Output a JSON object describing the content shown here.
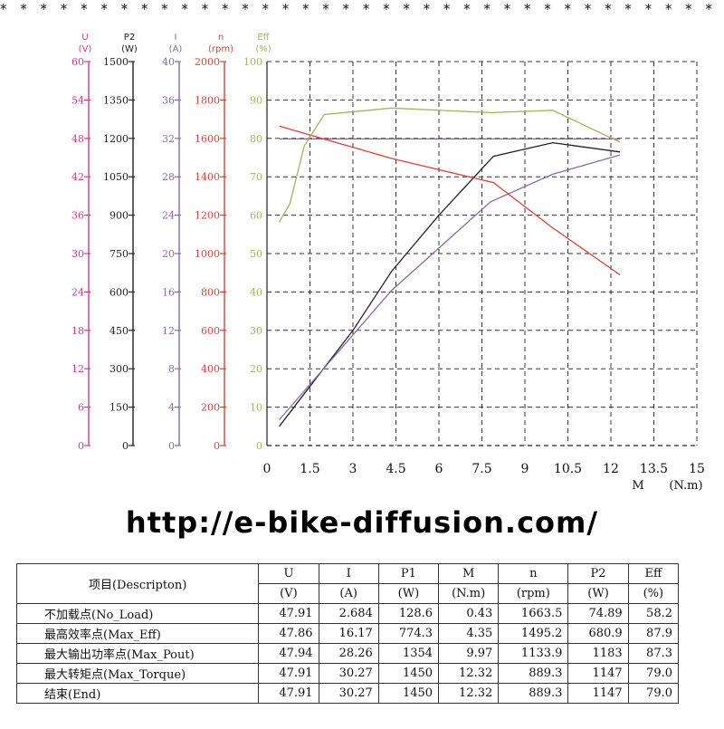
{
  "header": {
    "stars": "* * * * * * * * * * * * * * * * * * * * * * * * * * * * * * * * * * * * * * * * * * * *"
  },
  "url": "http://e-bike-diffusion.com/",
  "chart_data": {
    "type": "line",
    "xlabel": "M",
    "xunit": "(N.m)",
    "x_ticks": [
      "0",
      "1.5",
      "3",
      "4.5",
      "6",
      "7.5",
      "9",
      "10.5",
      "12",
      "13.5",
      "15"
    ],
    "xlim": [
      0,
      15
    ],
    "grid": true,
    "axes": [
      {
        "name": "U",
        "unit": "(V)",
        "color": "#d9388a",
        "range": [
          0,
          60
        ],
        "ticks": [
          "0",
          "6",
          "12",
          "18",
          "24",
          "30",
          "36",
          "42",
          "48",
          "54",
          "60"
        ]
      },
      {
        "name": "P2",
        "unit": "(W)",
        "color": "#222222",
        "range": [
          0,
          1500
        ],
        "ticks": [
          "0",
          "150",
          "300",
          "450",
          "600",
          "750",
          "900",
          "1050",
          "1200",
          "1350",
          "1500"
        ]
      },
      {
        "name": "I",
        "unit": "(A)",
        "color": "#8a6aa8",
        "range": [
          0,
          40
        ],
        "ticks": [
          "0",
          "4",
          "8",
          "12",
          "16",
          "20",
          "24",
          "28",
          "32",
          "36",
          "40"
        ]
      },
      {
        "name": "n",
        "unit": "(rpm)",
        "color": "#e0403a",
        "range": [
          0,
          2000
        ],
        "ticks": [
          "0",
          "200",
          "400",
          "600",
          "800",
          "1000",
          "1200",
          "1400",
          "1600",
          "1800",
          "2000"
        ]
      },
      {
        "name": "Eff",
        "unit": "(%)",
        "color": "#a4b45c",
        "range": [
          0,
          100
        ],
        "ticks": [
          "0",
          "10",
          "20",
          "30",
          "40",
          "50",
          "60",
          "70",
          "80",
          "90",
          "100"
        ]
      }
    ],
    "series": [
      {
        "axis": 0,
        "color": "#d9388a",
        "points": [
          [
            0.43,
            47.91
          ],
          [
            12.32,
            47.91
          ]
        ]
      },
      {
        "axis": 1,
        "color": "#222222",
        "points": [
          [
            0.43,
            74.89
          ],
          [
            3.0,
            450
          ],
          [
            4.35,
            680.9
          ],
          [
            6.0,
            900
          ],
          [
            7.9,
            1130
          ],
          [
            9.97,
            1183
          ],
          [
            12.32,
            1147
          ]
        ]
      },
      {
        "axis": 2,
        "color": "#8a6aa8",
        "points": [
          [
            0.43,
            2.684
          ],
          [
            4.35,
            16.17
          ],
          [
            7.8,
            25.4
          ],
          [
            9.97,
            28.26
          ],
          [
            12.32,
            30.27
          ]
        ]
      },
      {
        "axis": 3,
        "color": "#e0403a",
        "points": [
          [
            0.43,
            1663.5
          ],
          [
            4.35,
            1495.2
          ],
          [
            7.9,
            1370
          ],
          [
            9.97,
            1133.9
          ],
          [
            12.32,
            889.3
          ]
        ]
      },
      {
        "axis": 4,
        "color": "#a4b45c",
        "points": [
          [
            0.43,
            58.2
          ],
          [
            0.8,
            63
          ],
          [
            1.3,
            78
          ],
          [
            2.0,
            86.2
          ],
          [
            4.35,
            87.9
          ],
          [
            7.8,
            86.7
          ],
          [
            9.97,
            87.3
          ],
          [
            12.32,
            79.0
          ]
        ]
      }
    ]
  },
  "table": {
    "headers": [
      "项目(Descripton)",
      "U",
      "I",
      "P1",
      "M",
      "n",
      "P2",
      "Eff"
    ],
    "units": [
      "(V)",
      "(A)",
      "(W)",
      "(N.m)",
      "(rpm)",
      "(W)",
      "(%)"
    ],
    "rows": [
      {
        "label": "不加载点(No_Load)",
        "values": [
          "47.91",
          "2.684",
          "128.6",
          "0.43",
          "1663.5",
          "74.89",
          "58.2"
        ]
      },
      {
        "label": "最高效率点(Max_Eff)",
        "values": [
          "47.86",
          "16.17",
          "774.3",
          "4.35",
          "1495.2",
          "680.9",
          "87.9"
        ]
      },
      {
        "label": "最大输出功率点(Max_Pout)",
        "values": [
          "47.94",
          "28.26",
          "1354",
          "9.97",
          "1133.9",
          "1183",
          "87.3"
        ]
      },
      {
        "label": "最大转矩点(Max_Torque)",
        "values": [
          "47.91",
          "30.27",
          "1450",
          "12.32",
          "889.3",
          "1147",
          "79.0"
        ]
      },
      {
        "label": "结束(End)",
        "values": [
          "47.91",
          "30.27",
          "1450",
          "12.32",
          "889.3",
          "1147",
          "79.0"
        ]
      }
    ]
  }
}
